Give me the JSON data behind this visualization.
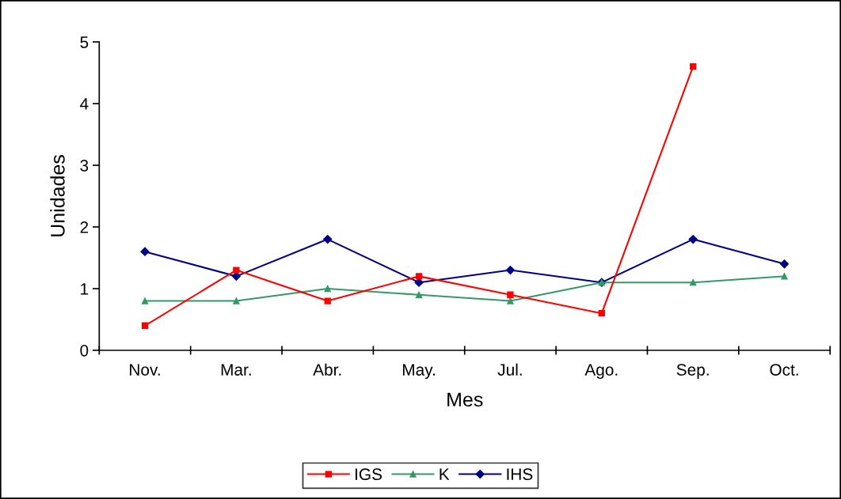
{
  "chart_data": {
    "type": "line",
    "xlabel": "Mes",
    "ylabel": "Unidades",
    "categories": [
      "Nov.",
      "Mar.",
      "Abr.",
      "May.",
      "Jul.",
      "Ago.",
      "Sep.",
      "Oct."
    ],
    "series": [
      {
        "name": "IGS",
        "color": "#ff0000",
        "marker": "square",
        "values": [
          0.4,
          1.3,
          0.8,
          1.2,
          0.9,
          0.6,
          4.6,
          null
        ]
      },
      {
        "name": "K",
        "color": "#339966",
        "marker": "triangle",
        "values": [
          0.8,
          0.8,
          1.0,
          0.9,
          0.8,
          1.1,
          1.1,
          1.2
        ]
      },
      {
        "name": "IHS",
        "color": "#000080",
        "marker": "diamond",
        "values": [
          1.6,
          1.2,
          1.8,
          1.1,
          1.3,
          1.1,
          1.8,
          1.4
        ]
      }
    ],
    "ylim": [
      0,
      5
    ],
    "yticks": [
      0,
      1,
      2,
      3,
      4,
      5
    ],
    "grid": false,
    "legend": "bottom",
    "line_style": "solid"
  }
}
